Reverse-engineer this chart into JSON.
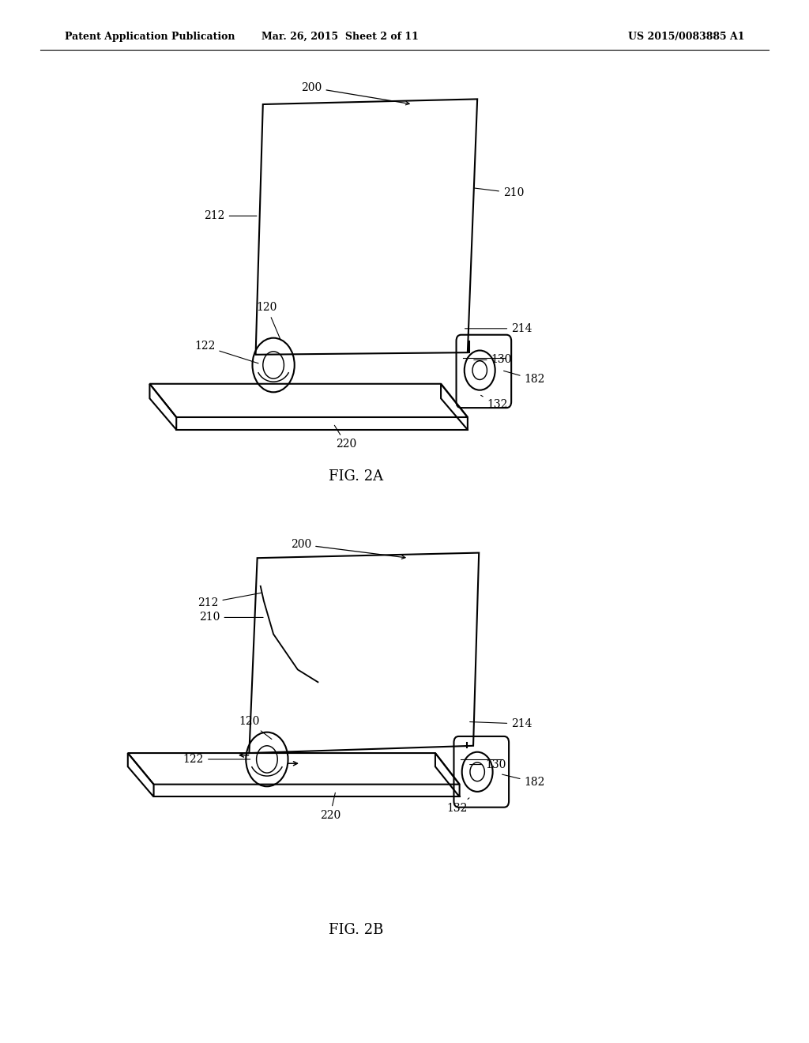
{
  "bg_color": "#ffffff",
  "line_color": "#000000",
  "line_width": 1.5,
  "header_left": "Patent Application Publication",
  "header_mid": "Mar. 26, 2015  Sheet 2 of 11",
  "header_right": "US 2015/0083885 A1",
  "fig2a_label": "FIG. 2A",
  "fig2b_label": "FIG. 2B"
}
